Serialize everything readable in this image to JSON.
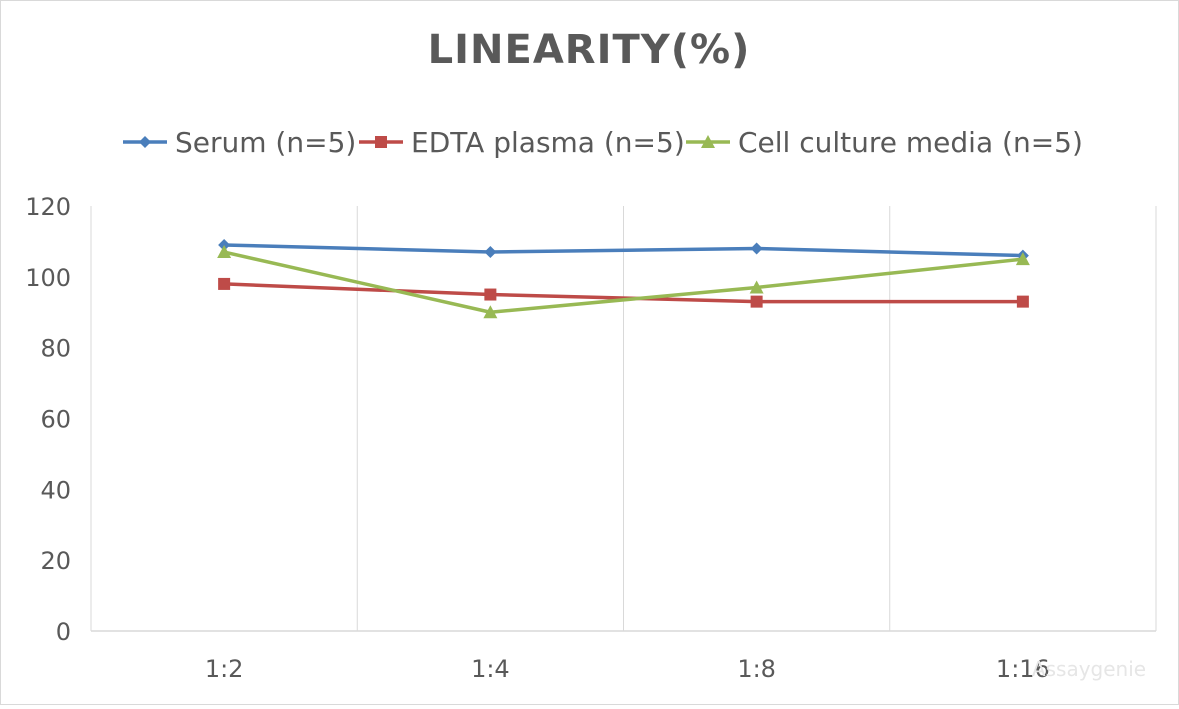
{
  "chart_data": {
    "type": "line",
    "title": "LINEARITY(%)",
    "xlabel": "",
    "ylabel": "",
    "categories": [
      "1:2",
      "1:4",
      "1:8",
      "1:16"
    ],
    "ylim": [
      0,
      120
    ],
    "yticks": [
      0,
      20,
      40,
      60,
      80,
      100,
      120
    ],
    "grid": "vertical",
    "legend_position": "top",
    "series": [
      {
        "name": "Serum (n=5)",
        "values": [
          109,
          107,
          108,
          106
        ],
        "color": "#4a7ebb",
        "marker": "diamond"
      },
      {
        "name": "EDTA plasma (n=5)",
        "values": [
          98,
          95,
          93,
          93
        ],
        "color": "#be4b48",
        "marker": "square"
      },
      {
        "name": "Cell culture media (n=5)",
        "values": [
          107,
          90,
          97,
          105
        ],
        "color": "#98b954",
        "marker": "triangle"
      }
    ],
    "watermark": "Assaygenie"
  }
}
